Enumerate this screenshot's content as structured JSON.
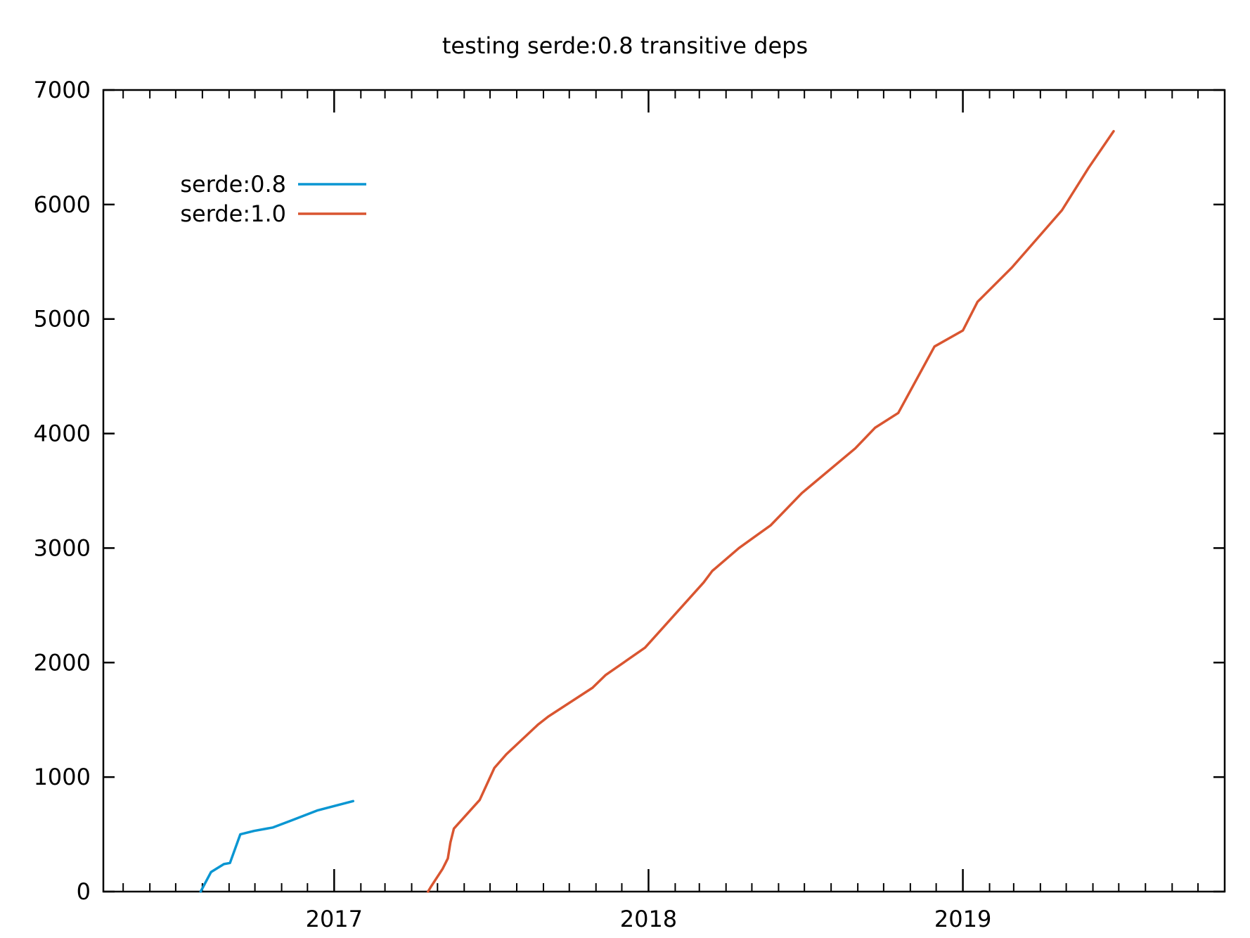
{
  "chart_data": {
    "type": "line",
    "title": "testing serde:0.8 transitive deps",
    "xlabel": "",
    "ylabel": "",
    "xlim": [
      "2016-04-08",
      "2019-11-01"
    ],
    "ylim": [
      0,
      7000
    ],
    "x_ticks": [
      "2017",
      "2018",
      "2019"
    ],
    "y_ticks": [
      "0",
      "1000",
      "2000",
      "3000",
      "4000",
      "5000",
      "6000",
      "7000"
    ],
    "grid": false,
    "legend_position": "top-left",
    "series": [
      {
        "name": "serde:0.8",
        "color": "#0a96d2",
        "points": [
          [
            "2016-07-30",
            0
          ],
          [
            "2016-08-11",
            170
          ],
          [
            "2016-08-26",
            240
          ],
          [
            "2016-09-02",
            250
          ],
          [
            "2016-09-14",
            500
          ],
          [
            "2016-09-30",
            530
          ],
          [
            "2016-10-22",
            560
          ],
          [
            "2016-11-12",
            620
          ],
          [
            "2016-12-13",
            710
          ],
          [
            "2017-01-23",
            790
          ]
        ]
      },
      {
        "name": "serde:1.0",
        "color": "#d95530",
        "points": [
          [
            "2017-04-20",
            0
          ],
          [
            "2017-04-24",
            50
          ],
          [
            "2017-05-07",
            200
          ],
          [
            "2017-05-13",
            290
          ],
          [
            "2017-05-16",
            430
          ],
          [
            "2017-05-20",
            550
          ],
          [
            "2017-06-19",
            800
          ],
          [
            "2017-07-06",
            1080
          ],
          [
            "2017-07-20",
            1200
          ],
          [
            "2017-08-26",
            1460
          ],
          [
            "2017-09-07",
            1530
          ],
          [
            "2017-10-28",
            1780
          ],
          [
            "2017-11-12",
            1890
          ],
          [
            "2017-12-28",
            2130
          ],
          [
            "2018-03-06",
            2700
          ],
          [
            "2018-03-16",
            2800
          ],
          [
            "2018-04-16",
            3000
          ],
          [
            "2018-05-23",
            3200
          ],
          [
            "2018-06-28",
            3480
          ],
          [
            "2018-08-29",
            3870
          ],
          [
            "2018-09-21",
            4050
          ],
          [
            "2018-10-18",
            4180
          ],
          [
            "2018-11-29",
            4760
          ],
          [
            "2019-01-01",
            4900
          ],
          [
            "2019-01-18",
            5150
          ],
          [
            "2019-02-27",
            5450
          ],
          [
            "2019-04-26",
            5950
          ],
          [
            "2019-05-27",
            6320
          ],
          [
            "2019-06-25",
            6640
          ]
        ]
      }
    ]
  }
}
